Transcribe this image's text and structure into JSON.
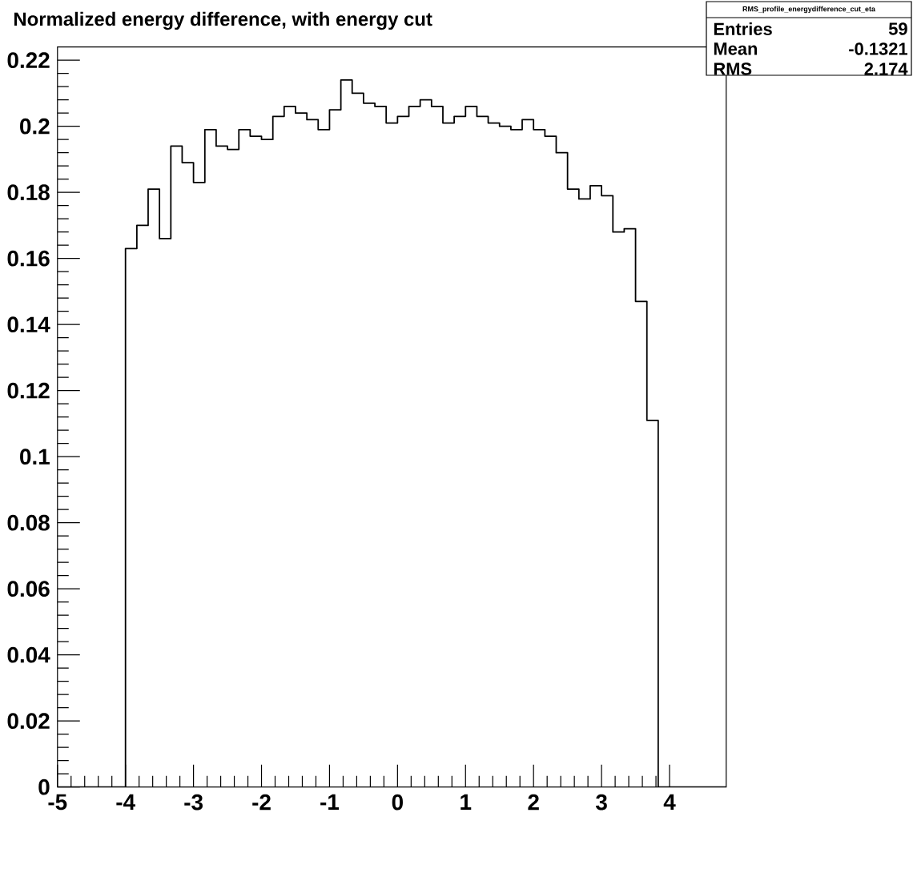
{
  "chart_data": {
    "type": "histogram",
    "title": "Normalized energy difference, with energy cut",
    "bins": [
      -5,
      -4.833,
      -4.667,
      -4.5,
      -4.333,
      -4.167,
      -4,
      -3.833,
      -3.667,
      -3.5,
      -3.333,
      -3.167,
      -3,
      -2.833,
      -2.667,
      -2.5,
      -2.333,
      -2.167,
      -2,
      -1.833,
      -1.667,
      -1.5,
      -1.333,
      -1.167,
      -1,
      -0.833,
      -0.667,
      -0.5,
      -0.333,
      -0.167,
      0,
      0.167,
      0.333,
      0.5,
      0.667,
      0.833,
      1,
      1.167,
      1.333,
      1.5,
      1.667,
      1.833,
      2,
      2.167,
      2.333,
      2.5,
      2.667,
      2.833,
      3,
      3.167,
      3.333,
      3.5,
      3.667,
      3.833,
      4,
      4.167,
      4.333,
      4.5,
      4.667,
      4.833
    ],
    "values": [
      0,
      0,
      0,
      0,
      0,
      0,
      0.163,
      0.17,
      0.181,
      0.166,
      0.194,
      0.189,
      0.183,
      0.199,
      0.194,
      0.193,
      0.199,
      0.197,
      0.196,
      0.203,
      0.206,
      0.204,
      0.202,
      0.199,
      0.205,
      0.214,
      0.21,
      0.207,
      0.206,
      0.201,
      0.203,
      0.206,
      0.208,
      0.206,
      0.201,
      0.203,
      0.206,
      0.203,
      0.201,
      0.2,
      0.199,
      0.202,
      0.199,
      0.197,
      0.192,
      0.181,
      0.178,
      0.182,
      0.179,
      0.168,
      0.169,
      0.147,
      0.111,
      0,
      0,
      0,
      0,
      0,
      0
    ],
    "color": "#000000",
    "xlim": [
      -5,
      4.833
    ],
    "ylim": [
      0,
      0.224
    ],
    "xticks": [
      -5,
      -4,
      -3,
      -2,
      -1,
      0,
      1,
      2,
      3,
      4
    ],
    "yticks": [
      0,
      0.02,
      0.04,
      0.06,
      0.08,
      0.1,
      0.12,
      0.14,
      0.16,
      0.18,
      0.2,
      0.22
    ],
    "annotations": [
      "RMS_profile_energydifference_cut_eta",
      "Entries",
      "59",
      "Mean",
      "-0.1321",
      "RMS",
      "2.174"
    ]
  }
}
